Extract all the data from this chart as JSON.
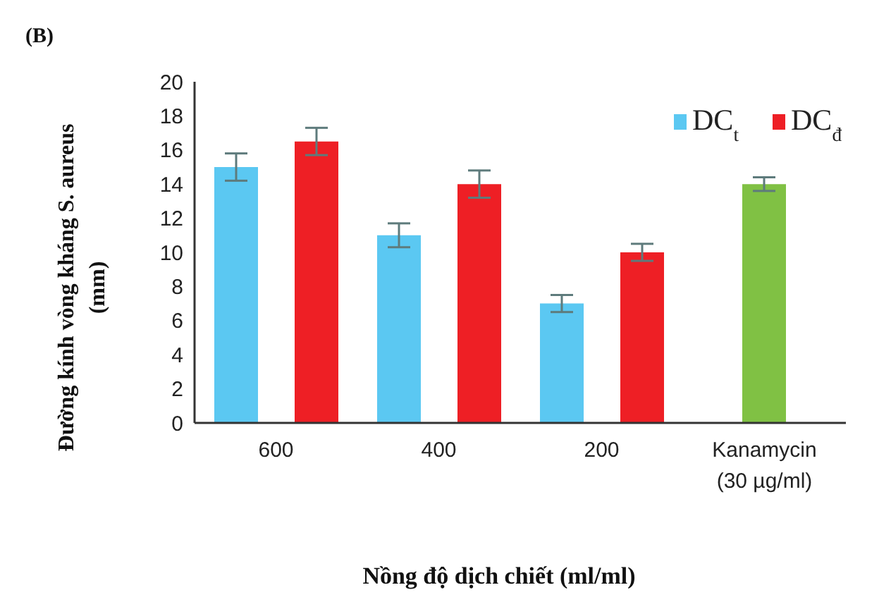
{
  "chart_data": {
    "type": "bar",
    "title": "(B)",
    "xlabel": "Nồng độ dịch chiết (ml/ml)",
    "ylabel": "Đường kính vòng kháng S. aureus (mm)",
    "categories": [
      "600",
      "400",
      "200",
      "Kanamycin (30 µg/ml)"
    ],
    "series": [
      {
        "name": "DC$_{t}$",
        "color": "#5bc8f2",
        "values": [
          15,
          11,
          7,
          null
        ],
        "errors": [
          0.8,
          0.7,
          0.5,
          null
        ]
      },
      {
        "name": "DC$_{đ}$",
        "color": "#ee1f25",
        "values": [
          16.5,
          14,
          10,
          null
        ],
        "errors": [
          0.8,
          0.8,
          0.5,
          null
        ]
      },
      {
        "color": "#80c144",
        "values": [
          null,
          null,
          null,
          14
        ],
        "errors": [
          null,
          null,
          null,
          0.4
        ]
      }
    ],
    "ylim": [
      0,
      20
    ],
    "yticks": [
      0,
      2,
      4,
      6,
      8,
      10,
      12,
      14,
      16,
      18,
      20
    ],
    "grid": false,
    "legend": "top right"
  }
}
